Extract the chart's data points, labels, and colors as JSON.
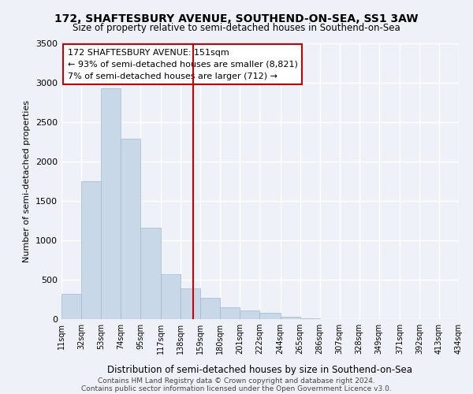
{
  "title": "172, SHAFTESBURY AVENUE, SOUTHEND-ON-SEA, SS1 3AW",
  "subtitle": "Size of property relative to semi-detached houses in Southend-on-Sea",
  "xlabel": "Distribution of semi-detached houses by size in Southend-on-Sea",
  "ylabel": "Number of semi-detached properties",
  "footnote1": "Contains HM Land Registry data © Crown copyright and database right 2024.",
  "footnote2": "Contains public sector information licensed under the Open Government Licence v3.0.",
  "annotation_line1": "172 SHAFTESBURY AVENUE: 151sqm",
  "annotation_line2": "← 93% of semi-detached houses are smaller (8,821)",
  "annotation_line3": "7% of semi-detached houses are larger (712) →",
  "property_size": 151,
  "bar_left_edges": [
    11,
    32,
    53,
    74,
    95,
    117,
    138,
    159,
    180,
    201,
    222,
    244,
    265,
    286,
    307,
    328,
    349,
    371,
    392,
    413
  ],
  "bar_heights": [
    320,
    1750,
    2930,
    2290,
    1160,
    570,
    390,
    270,
    155,
    110,
    80,
    30,
    15,
    5,
    3,
    2,
    1,
    1,
    0,
    0
  ],
  "tick_labels": [
    "11sqm",
    "32sqm",
    "53sqm",
    "74sqm",
    "95sqm",
    "117sqm",
    "138sqm",
    "159sqm",
    "180sqm",
    "201sqm",
    "222sqm",
    "244sqm",
    "265sqm",
    "286sqm",
    "307sqm",
    "328sqm",
    "349sqm",
    "371sqm",
    "392sqm",
    "413sqm",
    "434sqm"
  ],
  "bar_color": "#c8d8e8",
  "bar_edge_color": "#a0b8cc",
  "vline_color": "#cc0000",
  "vline_x": 151,
  "box_color": "#cc0000",
  "background_color": "#eef2f8",
  "grid_color": "#ffffff",
  "ylim": [
    0,
    3500
  ],
  "yticks": [
    0,
    500,
    1000,
    1500,
    2000,
    2500,
    3000,
    3500
  ]
}
